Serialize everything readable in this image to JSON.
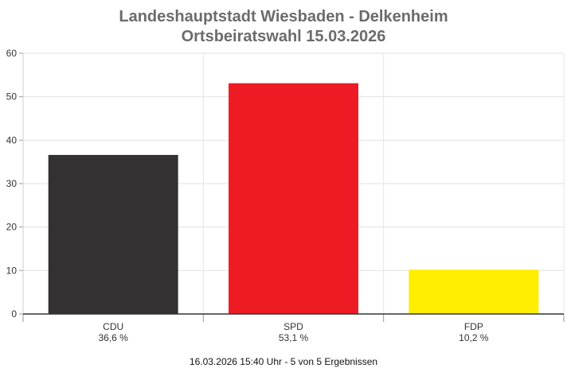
{
  "chart_data": {
    "type": "bar",
    "title": "Landeshauptstadt Wiesbaden - Delkenheim",
    "subtitle": "Ortsbeiratswahl 15.03.2026",
    "categories": [
      "CDU",
      "SPD",
      "FDP"
    ],
    "values": [
      36.6,
      53.1,
      10.2
    ],
    "value_labels": [
      "36,6 %",
      "53,1 %",
      "10,2 %"
    ],
    "colors": [
      "#333132",
      "#ed1c24",
      "#ffed00"
    ],
    "ylim": [
      0,
      60
    ],
    "yticks": [
      0,
      10,
      20,
      30,
      40,
      50,
      60
    ],
    "grid": true,
    "xlabel": "",
    "ylabel": ""
  },
  "footer": "16.03.2026 15:40 Uhr - 5 von 5 Ergebnissen"
}
